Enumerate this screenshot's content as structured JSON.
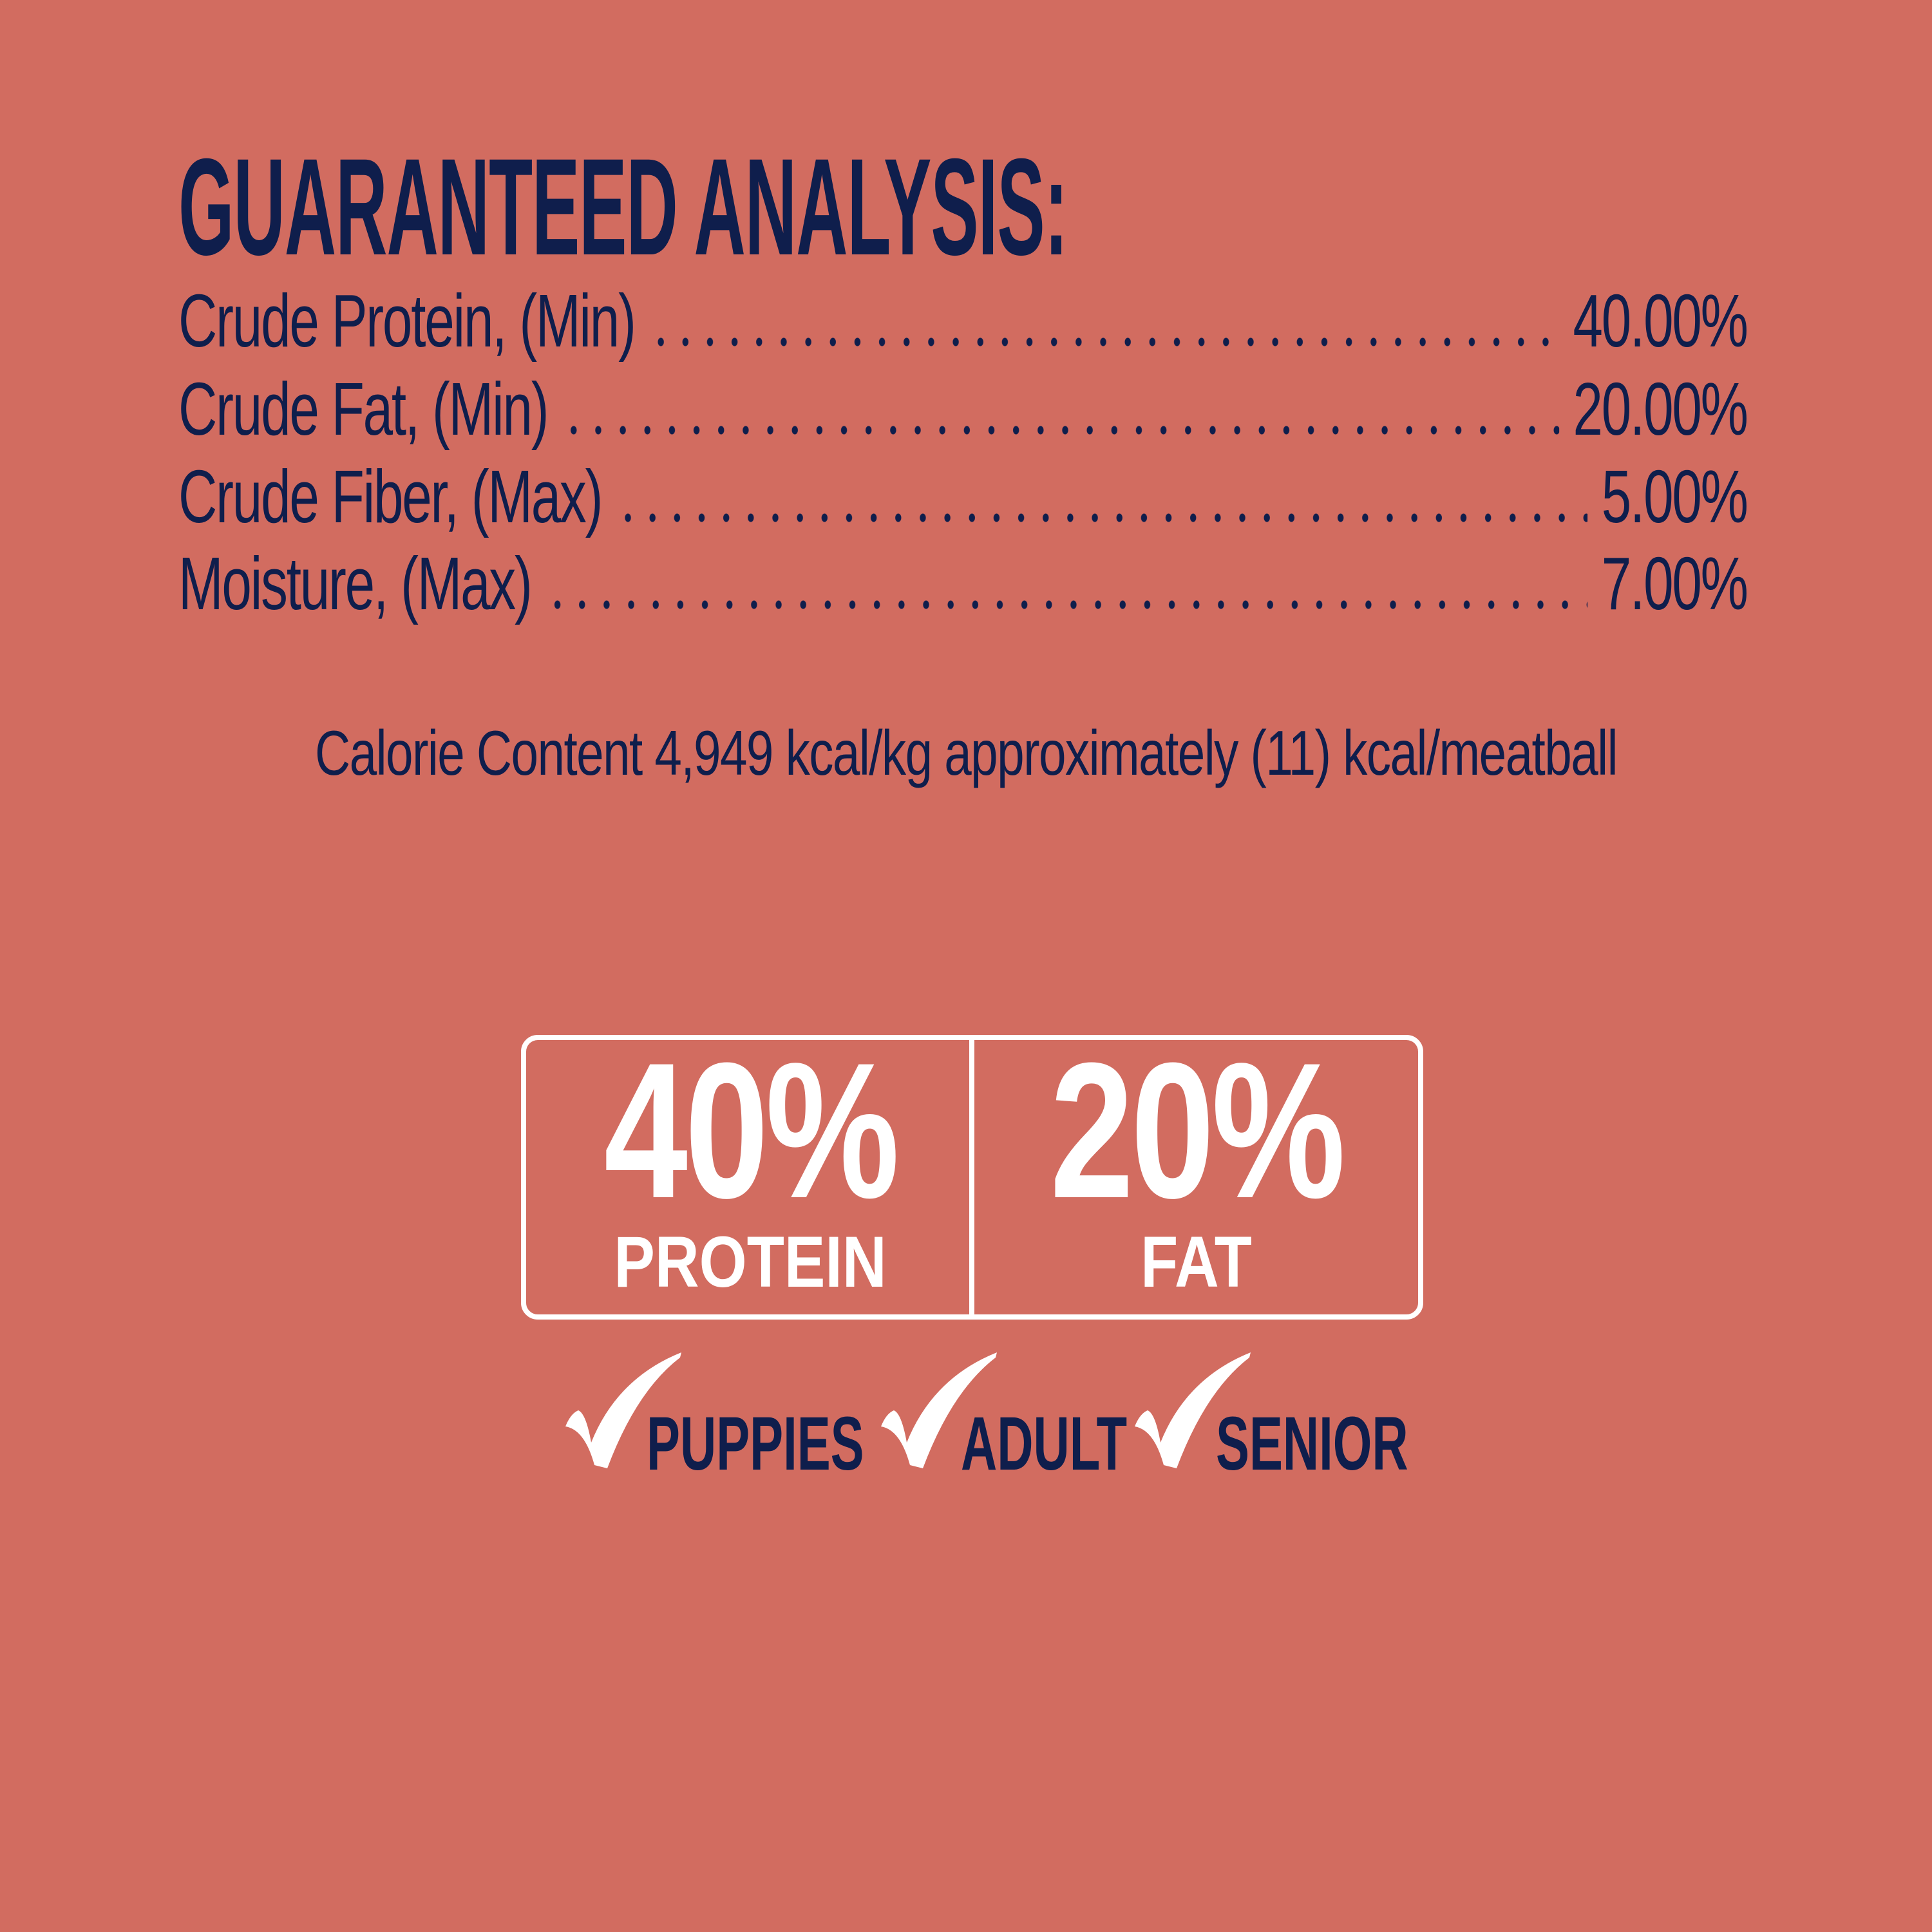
{
  "colors": {
    "background": "#D26C60",
    "navy": "#0F1E4C",
    "white": "#FFFFFF"
  },
  "heading": "GUARANTEED ANALYSIS:",
  "analysis": [
    {
      "label": "Crude Protein, (Min)",
      "value": "40.00%"
    },
    {
      "label": "Crude Fat, (Min)",
      "value": "20.00%"
    },
    {
      "label": "Crude Fiber, (Max)",
      "value": "5.00%"
    },
    {
      "label": "Moisture, (Max)",
      "value": "7.00%"
    }
  ],
  "calorie_content": "Calorie Content 4,949 kcal/kg approximately (11) kcal/meatball",
  "badges": [
    {
      "value": "40%",
      "label": "PROTEIN"
    },
    {
      "value": "20%",
      "label": "FAT"
    }
  ],
  "life_stages": [
    {
      "icon": "checkmark-icon",
      "label": "PUPPIES"
    },
    {
      "icon": "checkmark-icon",
      "label": "ADULT"
    },
    {
      "icon": "checkmark-icon",
      "label": "SENIOR"
    }
  ]
}
